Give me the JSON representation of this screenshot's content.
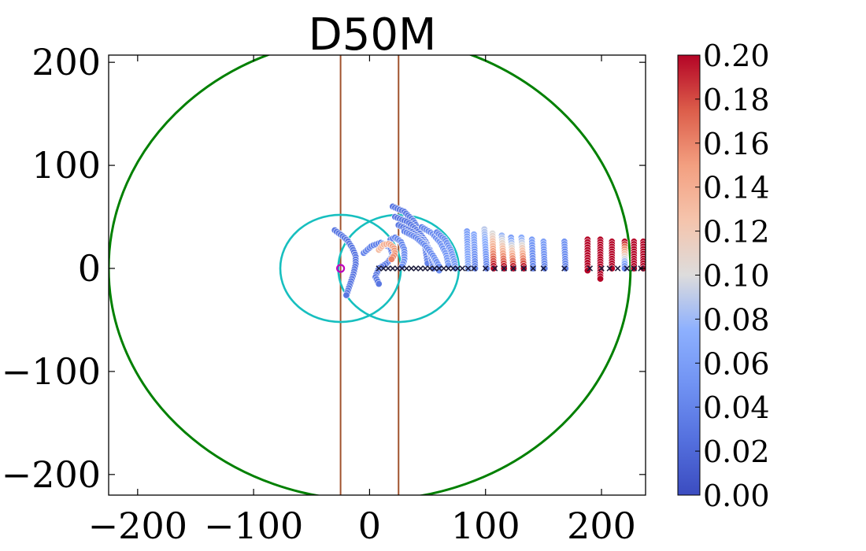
{
  "chart_data": {
    "type": "scatter",
    "title": "D50M",
    "xlabel": "",
    "ylabel": "",
    "xlim": [
      -225,
      238
    ],
    "ylim": [
      -220,
      207
    ],
    "x_ticks": [
      -200,
      -100,
      0,
      100,
      200
    ],
    "x_tick_labels": [
      "−200",
      "−100",
      "0",
      "100",
      "200"
    ],
    "y_ticks": [
      200,
      100,
      0,
      -100,
      -200
    ],
    "y_tick_labels": [
      "200",
      "100",
      "0",
      "−100",
      "−200"
    ],
    "colorbar": {
      "colormap": "coolwarm",
      "min": 0.0,
      "max": 0.2,
      "tick_values": [
        0.0,
        0.02,
        0.04,
        0.06,
        0.08,
        0.1,
        0.12,
        0.14,
        0.16,
        0.18,
        0.2
      ],
      "tick_labels": [
        "0.00",
        "0.02",
        "0.04",
        "0.06",
        "0.08",
        "0.10",
        "0.12",
        "0.14",
        "0.16",
        "0.18",
        "0.20"
      ]
    },
    "circles": [
      {
        "name": "outer-boundary-circle",
        "cx": 0,
        "cy": 0,
        "r": 225,
        "color": "#008000"
      },
      {
        "name": "left-cyan-circle",
        "cx": -25,
        "cy": 0,
        "r": 52,
        "color": "#17bfbf"
      },
      {
        "name": "right-cyan-circle",
        "cx": 25,
        "cy": 0,
        "r": 52,
        "color": "#17bfbf"
      }
    ],
    "vertical_lines": [
      {
        "name": "left-vertical-line",
        "x": -25,
        "color": "#a0522d"
      },
      {
        "name": "right-vertical-line",
        "x": 25,
        "color": "#a0522d"
      }
    ],
    "source_marker": {
      "x": -25,
      "y": 0,
      "color": "#bf00bf"
    },
    "x_markers": [
      8,
      12,
      16,
      20,
      24,
      28,
      32,
      36,
      40,
      44,
      48,
      52,
      56,
      60,
      64,
      68,
      72,
      76,
      80,
      85,
      90,
      100,
      108,
      116,
      124,
      133,
      141,
      150,
      168,
      190,
      200,
      207,
      214,
      222,
      228,
      234
    ],
    "trajectories": [
      {
        "name": "trail-left",
        "points": [
          [
            -30,
            37
          ],
          [
            -24,
            32
          ],
          [
            -19,
            27
          ],
          [
            -15,
            20
          ],
          [
            -12,
            12
          ],
          [
            -12,
            4
          ],
          [
            -14,
            -6
          ],
          [
            -17,
            -16
          ],
          [
            -20,
            -26
          ]
        ],
        "c_start": 0.03,
        "c_end": 0.03
      },
      {
        "name": "trail-center-1",
        "points": [
          [
            -5,
            15
          ],
          [
            2,
            22
          ],
          [
            10,
            25
          ],
          [
            18,
            20
          ],
          [
            20,
            12
          ],
          [
            15,
            5
          ],
          [
            8,
            0
          ],
          [
            5,
            -8
          ],
          [
            8,
            -15
          ]
        ],
        "c_start": 0.04,
        "c_end": 0.03
      },
      {
        "name": "trail-center-2",
        "points": [
          [
            18,
            28
          ],
          [
            22,
            30
          ],
          [
            27,
            26
          ],
          [
            30,
            18
          ],
          [
            30,
            8
          ],
          [
            28,
            2
          ]
        ],
        "c_start": 0.04,
        "c_end": 0.05
      },
      {
        "name": "trail-center-hot",
        "points": [
          [
            8,
            18
          ],
          [
            12,
            23
          ],
          [
            17,
            24
          ],
          [
            21,
            20
          ],
          [
            22,
            14
          ],
          [
            19,
            9
          ]
        ],
        "c_start": 0.13,
        "c_end": 0.16
      },
      {
        "name": "trail-arc-1",
        "points": [
          [
            20,
            60
          ],
          [
            30,
            55
          ],
          [
            38,
            46
          ],
          [
            44,
            34
          ],
          [
            48,
            20
          ],
          [
            50,
            5
          ]
        ],
        "c_start": 0.03,
        "c_end": 0.04
      },
      {
        "name": "trail-arc-2",
        "points": [
          [
            22,
            50
          ],
          [
            33,
            45
          ],
          [
            42,
            36
          ],
          [
            49,
            25
          ],
          [
            53,
            12
          ],
          [
            55,
            0
          ]
        ],
        "c_start": 0.03,
        "c_end": 0.04
      },
      {
        "name": "trail-arc-3",
        "points": [
          [
            25,
            42
          ],
          [
            36,
            36
          ],
          [
            45,
            28
          ],
          [
            52,
            18
          ],
          [
            57,
            6
          ],
          [
            60,
            -2
          ]
        ],
        "c_start": 0.03,
        "c_end": 0.05
      },
      {
        "name": "trail-arc-4",
        "points": [
          [
            30,
            36
          ],
          [
            40,
            30
          ],
          [
            48,
            22
          ],
          [
            55,
            12
          ],
          [
            60,
            2
          ]
        ],
        "c_start": 0.04,
        "c_end": 0.05
      },
      {
        "name": "trail-arc-5",
        "points": [
          [
            45,
            40
          ],
          [
            54,
            34
          ],
          [
            61,
            25
          ],
          [
            66,
            14
          ],
          [
            68,
            3
          ]
        ],
        "c_start": 0.04,
        "c_end": 0.06
      },
      {
        "name": "trail-arc-6",
        "points": [
          [
            58,
            35
          ],
          [
            65,
            28
          ],
          [
            70,
            18
          ],
          [
            73,
            7
          ],
          [
            74,
            0
          ]
        ],
        "c_start": 0.04,
        "c_end": 0.06
      },
      {
        "name": "column-84",
        "points": [
          [
            84,
            36
          ],
          [
            85,
            0
          ]
        ],
        "c_start": 0.06,
        "c_end": 0.07
      },
      {
        "name": "column-90",
        "points": [
          [
            90,
            33
          ],
          [
            91,
            0
          ]
        ],
        "c_start": 0.07,
        "c_end": 0.04
      },
      {
        "name": "column-100",
        "points": [
          [
            99,
            38
          ],
          [
            101,
            0
          ]
        ],
        "c_start": 0.09,
        "c_end": 0.04
      },
      {
        "name": "column-106",
        "points": [
          [
            106,
            34
          ],
          [
            107,
            0
          ]
        ],
        "c_start": 0.1,
        "c_end": 0.2
      },
      {
        "name": "column-115",
        "points": [
          [
            114,
            32
          ],
          [
            116,
            0
          ]
        ],
        "c_start": 0.08,
        "c_end": 0.2
      },
      {
        "name": "column-123",
        "points": [
          [
            122,
            30
          ],
          [
            124,
            0
          ]
        ],
        "c_start": 0.06,
        "c_end": 0.2
      },
      {
        "name": "column-132",
        "points": [
          [
            131,
            30
          ],
          [
            133,
            0
          ]
        ],
        "c_start": 0.07,
        "c_end": 0.2
      },
      {
        "name": "column-140",
        "points": [
          [
            140,
            28
          ],
          [
            141,
            0
          ]
        ],
        "c_start": 0.06,
        "c_end": 0.04
      },
      {
        "name": "column-150",
        "points": [
          [
            150,
            26
          ],
          [
            151,
            0
          ]
        ],
        "c_start": 0.06,
        "c_end": 0.04
      },
      {
        "name": "column-168",
        "points": [
          [
            168,
            26
          ],
          [
            169,
            0
          ]
        ],
        "c_start": 0.05,
        "c_end": 0.04
      },
      {
        "name": "column-188",
        "points": [
          [
            188,
            28
          ],
          [
            188,
            -2
          ]
        ],
        "c_start": 0.2,
        "c_end": 0.2
      },
      {
        "name": "column-200",
        "points": [
          [
            199,
            28
          ],
          [
            199,
            -10
          ]
        ],
        "c_start": 0.2,
        "c_end": 0.2
      },
      {
        "name": "column-210",
        "points": [
          [
            209,
            26
          ],
          [
            209,
            0
          ]
        ],
        "c_start": 0.2,
        "c_end": 0.2
      },
      {
        "name": "column-220",
        "points": [
          [
            220,
            26
          ],
          [
            220,
            0
          ]
        ],
        "c_start": 0.2,
        "c_end": 0.04
      },
      {
        "name": "column-228",
        "points": [
          [
            228,
            26
          ],
          [
            228,
            0
          ]
        ],
        "c_start": 0.2,
        "c_end": 0.2
      },
      {
        "name": "column-236",
        "points": [
          [
            236,
            26
          ],
          [
            236,
            0
          ]
        ],
        "c_start": 0.2,
        "c_end": 0.2
      }
    ],
    "colors": {
      "axis": "#000000",
      "background": "#ffffff",
      "x_marker": "#1a1a3a"
    }
  }
}
